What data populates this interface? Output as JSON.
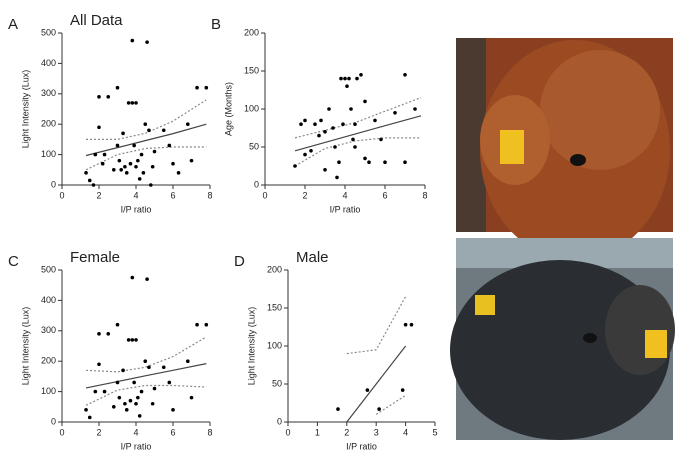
{
  "chart_data": [
    {
      "type": "scatter",
      "panel": "A",
      "title": "All Data",
      "xlabel": "I/P ratio",
      "ylabel": "Light Intensity (Lux)",
      "x": [
        1.3,
        1.5,
        1.7,
        1.8,
        2,
        2,
        2.2,
        2.3,
        2.5,
        2.8,
        3,
        3,
        3.1,
        3.2,
        3.3,
        3.4,
        3.5,
        3.6,
        3.7,
        3.8,
        3.8,
        3.9,
        4,
        4,
        4.1,
        4.2,
        4.3,
        4.4,
        4.5,
        4.6,
        4.7,
        4.8,
        4.9,
        5,
        5.5,
        5.8,
        6,
        6.3,
        6.8,
        7,
        7.3,
        7.8
      ],
      "values": [
        40,
        15,
        0,
        100,
        190,
        290,
        70,
        100,
        290,
        50,
        320,
        130,
        80,
        50,
        170,
        60,
        40,
        270,
        70,
        475,
        270,
        130,
        270,
        60,
        80,
        20,
        100,
        40,
        200,
        470,
        180,
        0,
        60,
        110,
        180,
        130,
        70,
        40,
        200,
        80,
        320,
        320
      ],
      "color": "#000000",
      "fit": {
        "x": [
          1.3,
          3,
          4.5,
          6,
          7.8
        ],
        "y": [
          97,
          123,
          146,
          169,
          200
        ],
        "upper": [
          150,
          150,
          170,
          210,
          280
        ],
        "lower": [
          50,
          100,
          120,
          125,
          125
        ]
      },
      "xlim": [
        0,
        8
      ],
      "ylim": [
        0,
        500
      ],
      "xticks": [
        0,
        2,
        4,
        6,
        8
      ],
      "yticks": [
        0,
        100,
        200,
        300,
        400,
        500
      ]
    },
    {
      "type": "scatter",
      "panel": "B",
      "xlabel": "I/P ratio",
      "ylabel": "Age (Months)",
      "x": [
        1.5,
        1.8,
        2,
        2,
        2.3,
        2.5,
        2.7,
        2.8,
        3,
        3,
        3.2,
        3.4,
        3.5,
        3.6,
        3.7,
        3.8,
        3.9,
        4,
        4.1,
        4.2,
        4.3,
        4.4,
        4.5,
        4.5,
        4.6,
        4.8,
        5,
        5,
        5.2,
        5.5,
        5.8,
        6,
        6.5,
        7,
        7,
        7.5
      ],
      "values": [
        25,
        80,
        85,
        40,
        45,
        80,
        65,
        85,
        70,
        20,
        100,
        75,
        50,
        10,
        30,
        140,
        80,
        140,
        130,
        140,
        100,
        60,
        80,
        50,
        140,
        145,
        110,
        35,
        30,
        85,
        60,
        30,
        95,
        145,
        30,
        100
      ],
      "color": "#000000",
      "fit": {
        "x": [
          1.5,
          3,
          4.5,
          6,
          7.8
        ],
        "y": [
          45,
          56,
          67,
          78,
          91
        ],
        "upper": [
          62,
          72,
          82,
          97,
          115
        ],
        "lower": [
          25,
          48,
          58,
          62,
          62
        ]
      },
      "xlim": [
        0,
        8
      ],
      "ylim": [
        0,
        200
      ],
      "xticks": [
        0,
        2,
        4,
        6,
        8
      ],
      "yticks": [
        0,
        50,
        100,
        150,
        200
      ]
    },
    {
      "type": "scatter",
      "panel": "C",
      "title": "Female",
      "xlabel": "I/P ratio",
      "ylabel": "Light Intensity (Lux)",
      "x": [
        1.3,
        1.5,
        1.8,
        2,
        2,
        2.3,
        2.5,
        2.8,
        3,
        3,
        3.1,
        3.3,
        3.4,
        3.5,
        3.6,
        3.7,
        3.8,
        3.8,
        3.9,
        4,
        4,
        4.1,
        4.2,
        4.3,
        4.5,
        4.6,
        4.7,
        4.9,
        5,
        5.5,
        5.8,
        6,
        6.8,
        7,
        7.3,
        7.8
      ],
      "values": [
        40,
        15,
        100,
        190,
        290,
        100,
        290,
        50,
        320,
        130,
        80,
        170,
        60,
        40,
        270,
        70,
        475,
        270,
        130,
        270,
        60,
        80,
        20,
        100,
        200,
        470,
        180,
        60,
        110,
        180,
        130,
        40,
        200,
        80,
        320,
        320
      ],
      "color": "#000000",
      "fit": {
        "x": [
          1.3,
          3,
          4.5,
          6,
          7.8
        ],
        "y": [
          112,
          133,
          152,
          170,
          192
        ],
        "upper": [
          170,
          165,
          180,
          215,
          280
        ],
        "lower": [
          55,
          105,
          120,
          120,
          115
        ]
      },
      "xlim": [
        0,
        8
      ],
      "ylim": [
        0,
        500
      ],
      "xticks": [
        0,
        2,
        4,
        6,
        8
      ],
      "yticks": [
        0,
        100,
        200,
        300,
        400,
        500
      ]
    },
    {
      "type": "scatter",
      "panel": "D",
      "title": "Male",
      "xlabel": "I/P ratio",
      "ylabel": "Light Intensity (Lux)",
      "x": [
        1.7,
        2.7,
        3.1,
        3.9,
        4,
        4.2
      ],
      "values": [
        17,
        42,
        17,
        42,
        128,
        128
      ],
      "color": "#000000",
      "fit": {
        "x": [
          2,
          3,
          4
        ],
        "y": [
          0,
          50,
          100
        ],
        "upper": [
          90,
          95,
          165
        ],
        "lower": [
          null,
          10,
          35
        ]
      },
      "xlim": [
        0,
        5
      ],
      "ylim": [
        0,
        200
      ],
      "xticks": [
        0,
        1,
        2,
        3,
        4,
        5
      ],
      "yticks": [
        0,
        50,
        100,
        150,
        200
      ]
    }
  ]
}
